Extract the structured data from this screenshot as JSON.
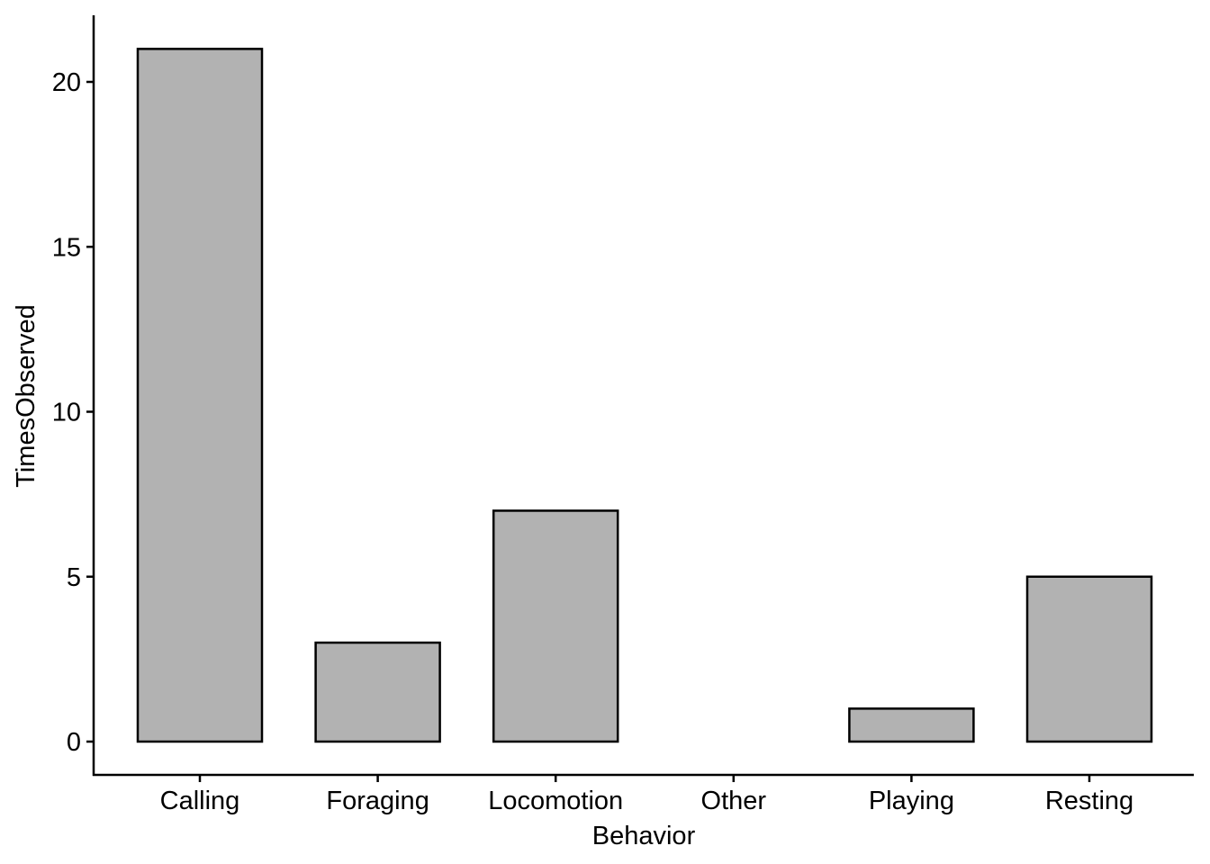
{
  "chart_data": {
    "type": "bar",
    "title": "",
    "xlabel": "Behavior",
    "ylabel": "TimesObserved",
    "categories": [
      "Calling",
      "Foraging",
      "Locomotion",
      "Other",
      "Playing",
      "Resting"
    ],
    "values": [
      21,
      3,
      7,
      0,
      1,
      5
    ],
    "ylim": [
      0,
      22
    ],
    "yticks": [
      0,
      5,
      10,
      15,
      20
    ],
    "grid": false,
    "legend": "none",
    "colors": {
      "bar_fill": "#b2b2b2",
      "bar_stroke": "#000000",
      "axis": "#000000"
    }
  }
}
